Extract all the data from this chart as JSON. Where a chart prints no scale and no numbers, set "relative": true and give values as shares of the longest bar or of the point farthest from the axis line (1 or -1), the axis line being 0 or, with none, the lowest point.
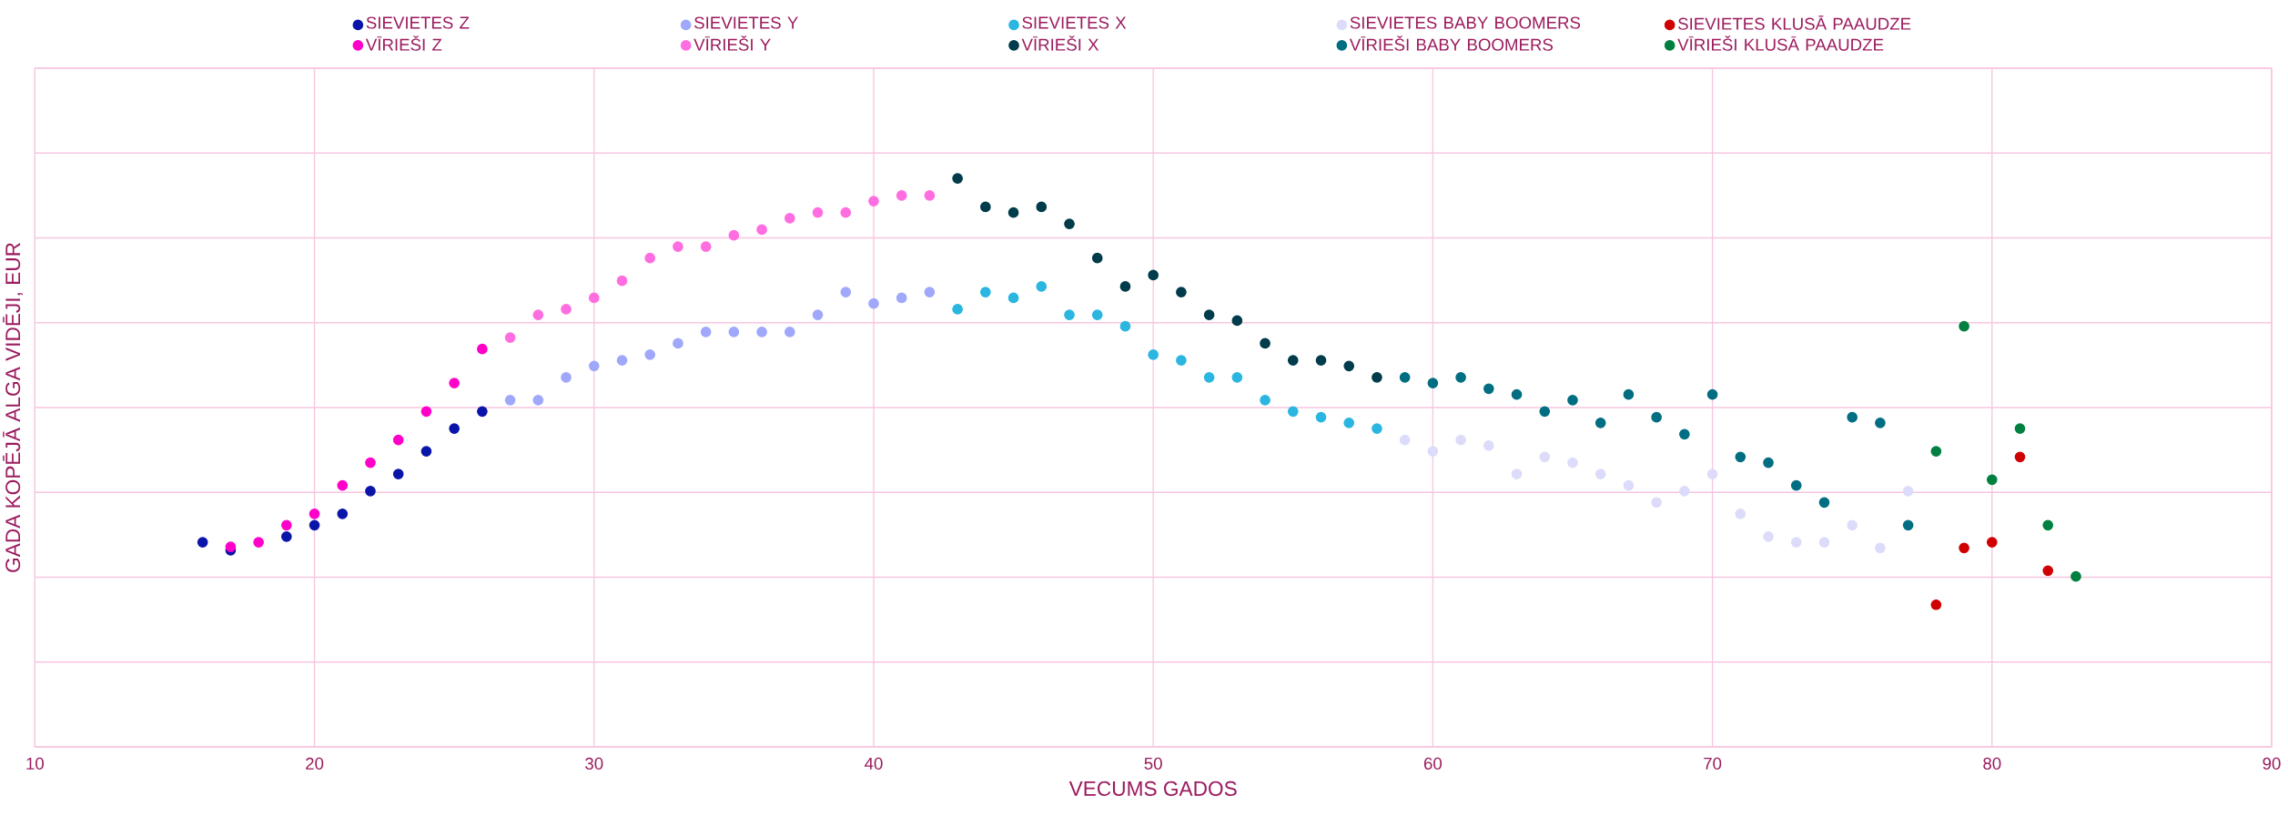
{
  "chart_data": {
    "type": "scatter",
    "xlabel": "VECUMS GADOS",
    "ylabel": "GADA KOPĒJĀ ALGA VIDĒJI, EUR",
    "relative": true,
    "xlim": [
      10,
      90
    ],
    "xticks": [
      10,
      20,
      30,
      40,
      50,
      60,
      70,
      80,
      90
    ],
    "grid": true,
    "legend": "top",
    "marker": "circle",
    "tick_labels": "x",
    "series": [
      {
        "name": "SIEVIETES Z",
        "color": "#0a14a8",
        "x": [
          16,
          17,
          18,
          19,
          20,
          21,
          22,
          23,
          24,
          25,
          26
        ],
        "values": [
          0.36,
          0.346,
          null,
          0.37,
          0.39,
          0.41,
          0.45,
          0.48,
          0.52,
          0.56,
          0.59
        ]
      },
      {
        "name": "SIEVIETES Y",
        "color": "#9fa8fa",
        "x": [
          27,
          28,
          29,
          30,
          31,
          32,
          33,
          34,
          35,
          36,
          37,
          38,
          39,
          40,
          41,
          42
        ],
        "values": [
          0.61,
          0.61,
          0.65,
          0.67,
          0.68,
          0.69,
          0.71,
          0.73,
          0.73,
          0.73,
          0.73,
          0.76,
          0.8,
          0.78,
          0.79,
          0.8
        ]
      },
      {
        "name": "SIEVIETES X",
        "color": "#2ab6e0",
        "x": [
          43,
          44,
          45,
          46,
          47,
          48,
          49,
          50,
          51,
          52,
          53,
          54,
          55,
          56,
          57,
          58
        ],
        "values": [
          0.77,
          0.8,
          0.79,
          0.81,
          0.76,
          0.76,
          0.74,
          0.69,
          0.68,
          0.65,
          0.65,
          0.61,
          0.59,
          0.58,
          0.57,
          0.56
        ]
      },
      {
        "name": "SIEVIETES BABY BOOMERS",
        "color": "#dcdcfa",
        "x": [
          59,
          60,
          61,
          62,
          63,
          64,
          65,
          66,
          67,
          68,
          69,
          70,
          71,
          72,
          73,
          74,
          75,
          76,
          77
        ],
        "values": [
          0.54,
          0.52,
          0.54,
          0.53,
          0.48,
          0.51,
          0.5,
          0.48,
          0.46,
          0.43,
          0.45,
          0.48,
          0.41,
          0.37,
          0.36,
          0.36,
          0.39,
          0.35,
          0.45
        ]
      },
      {
        "name": "SIEVIETES KLUSĀ PAAUDZE",
        "color": "#d00000",
        "x": [
          78,
          79,
          80,
          81,
          82
        ],
        "values": [
          0.25,
          0.35,
          0.36,
          0.51,
          0.31
        ]
      },
      {
        "name": "VĪRIEŠI Z",
        "color": "#ff00c8",
        "x": [
          17,
          18,
          19,
          20,
          21,
          22,
          23,
          24,
          25,
          26
        ],
        "values": [
          0.352,
          0.36,
          0.39,
          0.41,
          0.46,
          0.5,
          0.54,
          0.59,
          0.64,
          0.7
        ]
      },
      {
        "name": "VĪRIEŠI Y",
        "color": "#ff6ee0",
        "x": [
          27,
          28,
          29,
          30,
          31,
          32,
          33,
          34,
          35,
          36,
          37,
          38,
          39,
          40,
          41,
          42
        ],
        "values": [
          0.72,
          0.76,
          0.77,
          0.79,
          0.82,
          0.86,
          0.88,
          0.88,
          0.9,
          0.91,
          0.93,
          0.94,
          0.94,
          0.96,
          0.97,
          0.97
        ]
      },
      {
        "name": "VĪRIEŠI X",
        "color": "#003c4b",
        "x": [
          43,
          44,
          45,
          46,
          47,
          48,
          49,
          50,
          51,
          52,
          53,
          54,
          55,
          56,
          57,
          58
        ],
        "values": [
          1,
          0.95,
          0.94,
          0.95,
          0.92,
          0.86,
          0.81,
          0.83,
          0.8,
          0.76,
          0.75,
          0.71,
          0.68,
          0.68,
          0.67,
          0.65
        ]
      },
      {
        "name": "VĪRIEŠI BABY BOOMERS",
        "color": "#006e82",
        "x": [
          59,
          60,
          61,
          62,
          63,
          64,
          65,
          66,
          67,
          68,
          69,
          70,
          71,
          72,
          73,
          74,
          75,
          76,
          77
        ],
        "values": [
          0.65,
          0.64,
          0.65,
          0.63,
          0.62,
          0.59,
          0.61,
          0.57,
          0.62,
          0.58,
          0.55,
          0.62,
          0.51,
          0.5,
          0.46,
          0.43,
          0.58,
          0.57,
          0.39
        ]
      },
      {
        "name": "VĪRIEŠI KLUSĀ PAAUDZE",
        "color": "#008040",
        "x": [
          78,
          79,
          80,
          81,
          82,
          83
        ],
        "values": [
          0.52,
          0.74,
          0.47,
          0.56,
          0.39,
          0.3
        ]
      }
    ]
  }
}
